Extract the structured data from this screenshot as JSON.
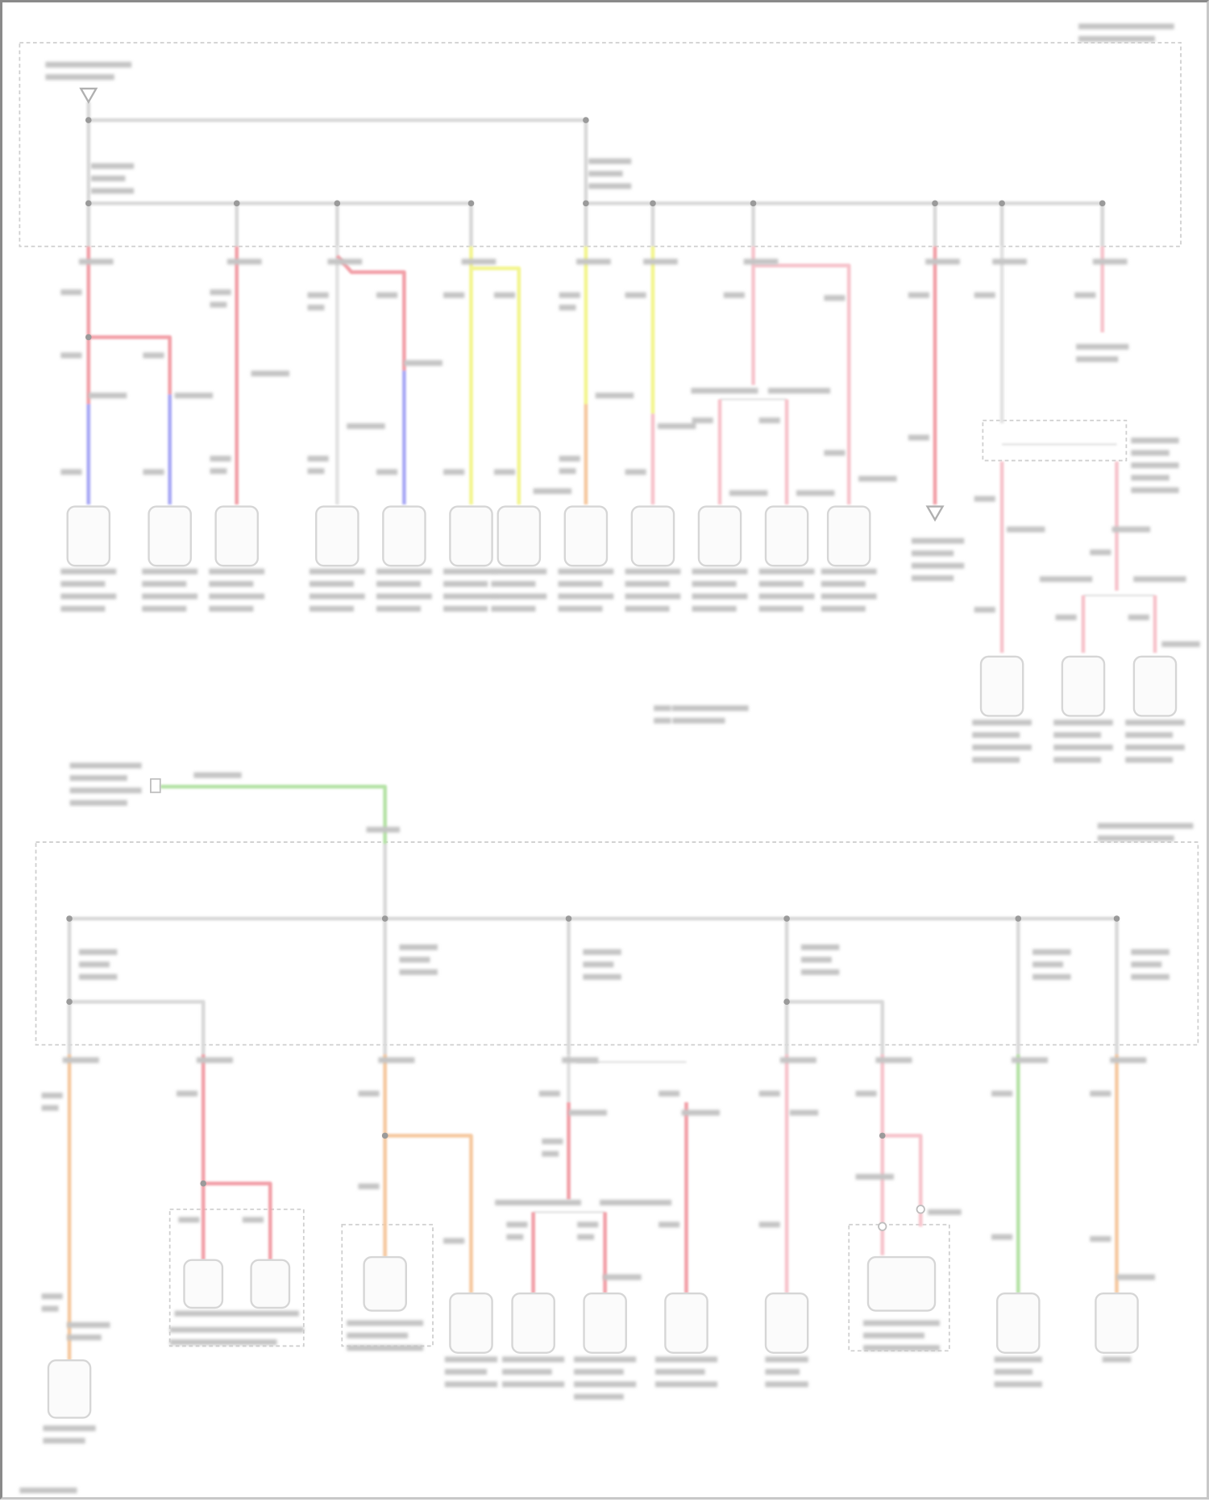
{
  "colors": {
    "bus": "#d9d9d9",
    "frame": "#cfcfcf",
    "red": "#f2a0a8",
    "pink": "#f7c4cc",
    "blue": "#a9a9f5",
    "yellow": "#f3f590",
    "orange": "#f6c9a0",
    "green": "#b5e3a6",
    "gray": "#e2e2e2",
    "label": "#c4c4c4",
    "component": "#d6d6d6",
    "background": "#ffffff"
  }
}
